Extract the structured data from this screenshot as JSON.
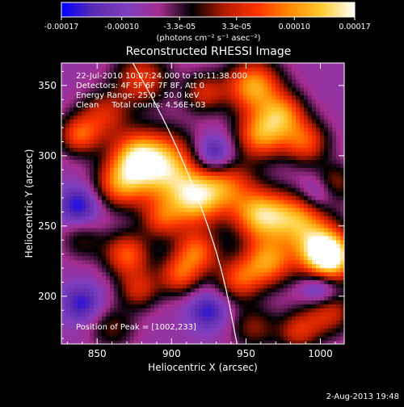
{
  "chart_data": {
    "type": "heatmap",
    "title": "Reconstructed RHESSI Image",
    "xlabel": "Heliocentric X (arcsec)",
    "ylabel": "Heliocentric Y (arcsec)",
    "xlim": [
      826,
      1016
    ],
    "ylim": [
      166,
      366
    ],
    "x_ticks": [
      850,
      900,
      950,
      1000
    ],
    "y_ticks": [
      200,
      250,
      300,
      350
    ],
    "colorbar": {
      "range": [
        -0.00017,
        0.00017
      ],
      "tick_values": [
        -0.00017,
        -0.0001,
        -3.3e-05,
        3.3e-05,
        0.0001,
        0.00017
      ],
      "tick_labels": [
        "-0.00017",
        "-0.00010",
        "-3.3e-05",
        "3.3e-05",
        "0.00010",
        "0.00017"
      ],
      "units_label": "(photons cm⁻² s⁻¹ asec⁻²)",
      "colors": [
        "#0000ff",
        "#5a2ab0",
        "#7f3fbf",
        "#a42d90",
        "#000000",
        "#b21a00",
        "#ff3300",
        "#ff8800",
        "#ffcc33",
        "#ffffff"
      ]
    },
    "annotations": [
      "22-Jul-2010 10:07:24.000 to 10:11:38.000",
      "Detectors: 4F 5F 6F 7F 8F, Att 0",
      "Energy Range: 25.0 - 50.0 keV",
      "Clean     Total counts: 4.56E+03"
    ],
    "peak_text": "Position of Peak = [1002,233]",
    "peak": [
      1002,
      233
    ],
    "limb_curve": [
      [
        874,
        366
      ],
      [
        898,
        320
      ],
      [
        918,
        270
      ],
      [
        934,
        220
      ],
      [
        944,
        166
      ]
    ],
    "field": {
      "base": -7.2e-05,
      "blobs": [
        [
          1002,
          233,
          0.00022,
          13
        ],
        [
          1008,
          225,
          0.00012,
          11
        ],
        [
          895,
          292,
          0.0002,
          17
        ],
        [
          876,
          300,
          0.00014,
          12
        ],
        [
          865,
          280,
          0.00014,
          12
        ],
        [
          915,
          268,
          0.00016,
          13
        ],
        [
          935,
          280,
          0.00014,
          14
        ],
        [
          960,
          258,
          0.00019,
          13
        ],
        [
          985,
          255,
          0.00015,
          13
        ],
        [
          965,
          225,
          0.00016,
          12
        ],
        [
          945,
          212,
          0.00012,
          11
        ],
        [
          917,
          232,
          0.00014,
          11
        ],
        [
          905,
          215,
          0.00012,
          10
        ],
        [
          893,
          255,
          0.0001,
          10
        ],
        [
          960,
          315,
          0.00016,
          12
        ],
        [
          975,
          330,
          0.00014,
          11
        ],
        [
          990,
          310,
          0.00013,
          11
        ],
        [
          955,
          350,
          0.00018,
          13
        ],
        [
          880,
          355,
          0.00012,
          13
        ],
        [
          922,
          345,
          0.0001,
          10
        ],
        [
          870,
          230,
          0.00014,
          11
        ],
        [
          855,
          330,
          0.0001,
          12
        ],
        [
          838,
          315,
          0.00013,
          10
        ],
        [
          878,
          205,
          0.0001,
          10
        ],
        [
          1005,
          190,
          0.00012,
          12
        ],
        [
          985,
          175,
          0.0001,
          10
        ],
        [
          1008,
          280,
          0.00011,
          10
        ],
        [
          955,
          178,
          8e-05,
          11
        ],
        [
          860,
          178,
          7e-05,
          11
        ],
        [
          840,
          240,
          6e-05,
          10
        ],
        [
          928,
          300,
          -0.00012,
          10
        ],
        [
          1000,
          275,
          -9e-05,
          9
        ],
        [
          1000,
          205,
          -0.00011,
          9
        ],
        [
          838,
          265,
          -9e-05,
          10
        ],
        [
          925,
          190,
          -8e-05,
          10
        ],
        [
          840,
          195,
          -8e-05,
          10
        ]
      ]
    }
  },
  "footer": {
    "timestamp": "2-Aug-2013 19:48"
  }
}
